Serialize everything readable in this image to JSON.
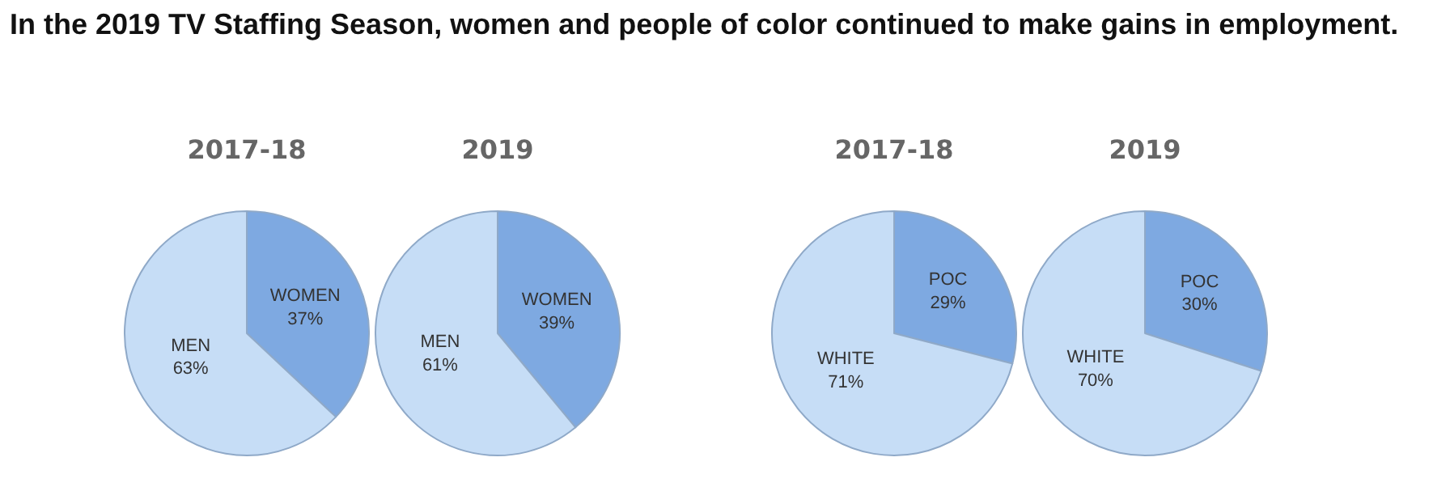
{
  "chart_data": [
    {
      "type": "pie",
      "title": "2017-18",
      "annotations": [
        "In the 2019 TV Staffing Season, women and people of color continued to make gains in employment."
      ],
      "categories": [
        "WOMEN",
        "MEN"
      ],
      "values": [
        37,
        63
      ],
      "value_labels": [
        "37%",
        "63%"
      ],
      "colors": [
        "#7ea9e1",
        "#c6ddf6"
      ],
      "legend": false
    },
    {
      "type": "pie",
      "title": "2019",
      "categories": [
        "WOMEN",
        "MEN"
      ],
      "values": [
        39,
        61
      ],
      "value_labels": [
        "39%",
        "61%"
      ],
      "colors": [
        "#7ea9e1",
        "#c6ddf6"
      ],
      "legend": false
    },
    {
      "type": "pie",
      "title": "2017-18",
      "categories": [
        "POC",
        "WHITE"
      ],
      "values": [
        29,
        71
      ],
      "value_labels": [
        "29%",
        "71%"
      ],
      "colors": [
        "#7ea9e1",
        "#c6ddf6"
      ],
      "legend": false
    },
    {
      "type": "pie",
      "title": "2019",
      "categories": [
        "POC",
        "WHITE"
      ],
      "values": [
        30,
        70
      ],
      "value_labels": [
        "30%",
        "70%"
      ],
      "colors": [
        "#7ea9e1",
        "#c6ddf6"
      ],
      "legend": false
    }
  ]
}
